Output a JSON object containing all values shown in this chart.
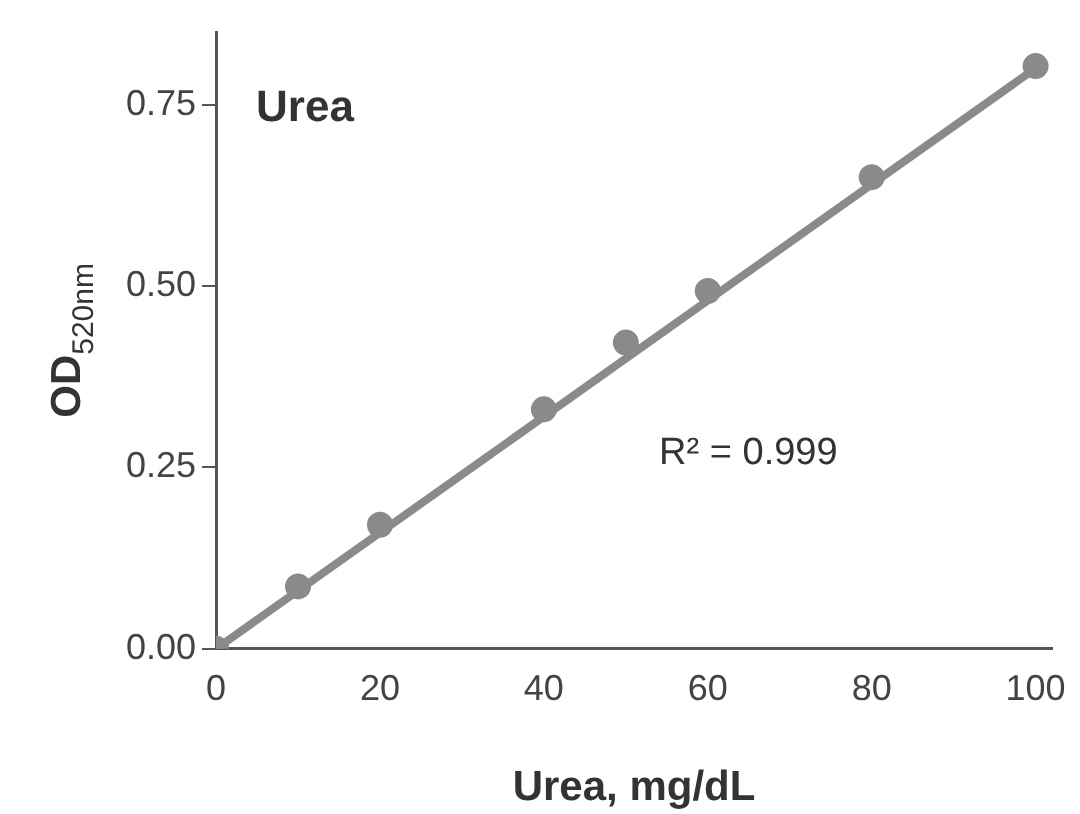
{
  "chart_data": {
    "type": "scatter",
    "title": "Urea",
    "xlabel": "Urea, mg/dL",
    "ylabel": "OD$_{520nm}$",
    "annotations": [
      "R² = 0.999"
    ],
    "series": [
      {
        "color": "#8a8a8a",
        "x": [
          0,
          10,
          20,
          40,
          50,
          60,
          80,
          100
        ],
        "values": [
          0,
          0.086,
          0.171,
          0.33,
          0.422,
          0.493,
          0.65,
          0.803
        ]
      },
      {
        "type": "line",
        "marker": "none",
        "color": "#8a8a8a",
        "x": [
          0,
          100
        ],
        "values": [
          0,
          0.8
        ]
      }
    ],
    "xlim": [
      0,
      102
    ],
    "xticks": [
      0,
      20,
      40,
      60,
      80,
      100
    ],
    "ylim": [
      0,
      0.85
    ],
    "yticks": [
      {
        "value": 0,
        "label": "0.00"
      },
      {
        "value": 0.25,
        "label": "0.25"
      },
      {
        "value": 0.5,
        "label": "0.50"
      },
      {
        "value": 0.75,
        "label": "0.75"
      }
    ],
    "grid": false,
    "legend": false,
    "marker": "circle"
  }
}
